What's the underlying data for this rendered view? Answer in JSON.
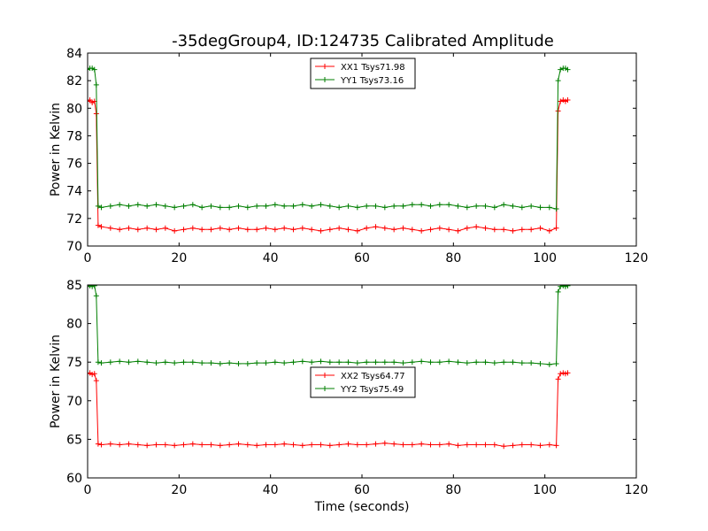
{
  "chart_data": [
    {
      "type": "line",
      "title": "-35degGroup4, ID:124735 Calibrated Amplitude",
      "xlabel": "",
      "ylabel": "Power in Kelvin",
      "xlim": [
        0,
        120
      ],
      "ylim": [
        70,
        84
      ],
      "xticks": [
        "0",
        "20",
        "40",
        "60",
        "80",
        "100",
        "120"
      ],
      "yticks": [
        "70",
        "72",
        "74",
        "76",
        "78",
        "80",
        "82",
        "84"
      ],
      "legend": "upper-center",
      "grid": false,
      "series": [
        {
          "name": "XX1 Tsys71.98",
          "color": "#ff0000",
          "marker": "plus",
          "x": [
            0.0,
            0.5,
            1.0,
            1.5,
            1.9,
            2.3,
            3,
            5,
            7,
            9,
            11,
            13,
            15,
            17,
            19,
            21,
            23,
            25,
            27,
            29,
            31,
            33,
            35,
            37,
            39,
            41,
            43,
            45,
            47,
            49,
            51,
            53,
            55,
            57,
            59,
            61,
            63,
            65,
            67,
            69,
            71,
            73,
            75,
            77,
            79,
            81,
            83,
            85,
            87,
            89,
            91,
            93,
            95,
            97,
            99,
            101,
            102.5,
            102.9,
            103.4,
            104,
            104.5,
            105
          ],
          "y": [
            80.5,
            80.6,
            80.4,
            80.5,
            79.6,
            71.5,
            71.4,
            71.3,
            71.2,
            71.3,
            71.2,
            71.3,
            71.2,
            71.3,
            71.1,
            71.2,
            71.3,
            71.2,
            71.2,
            71.3,
            71.2,
            71.3,
            71.2,
            71.2,
            71.3,
            71.2,
            71.3,
            71.2,
            71.3,
            71.2,
            71.1,
            71.2,
            71.3,
            71.2,
            71.1,
            71.3,
            71.4,
            71.3,
            71.2,
            71.3,
            71.2,
            71.1,
            71.2,
            71.3,
            71.2,
            71.1,
            71.3,
            71.4,
            71.3,
            71.2,
            71.2,
            71.1,
            71.2,
            71.2,
            71.3,
            71.1,
            71.3,
            79.8,
            80.5,
            80.6,
            80.5,
            80.6
          ]
        },
        {
          "name": "YY1 Tsys73.16",
          "color": "#007f00",
          "marker": "plus",
          "x": [
            0.0,
            0.5,
            1.0,
            1.5,
            1.9,
            2.3,
            3,
            5,
            7,
            9,
            11,
            13,
            15,
            17,
            19,
            21,
            23,
            25,
            27,
            29,
            31,
            33,
            35,
            37,
            39,
            41,
            43,
            45,
            47,
            49,
            51,
            53,
            55,
            57,
            59,
            61,
            63,
            65,
            67,
            69,
            71,
            73,
            75,
            77,
            79,
            81,
            83,
            85,
            87,
            89,
            91,
            93,
            95,
            97,
            99,
            101,
            102.5,
            102.9,
            103.4,
            104,
            104.5,
            105
          ],
          "y": [
            82.8,
            82.9,
            82.9,
            82.8,
            81.7,
            72.9,
            72.8,
            72.9,
            73.0,
            72.9,
            73.0,
            72.9,
            73.0,
            72.9,
            72.8,
            72.9,
            73.0,
            72.8,
            72.9,
            72.8,
            72.8,
            72.9,
            72.8,
            72.9,
            72.9,
            73.0,
            72.9,
            72.9,
            73.0,
            72.9,
            73.0,
            72.9,
            72.8,
            72.9,
            72.8,
            72.9,
            72.9,
            72.8,
            72.9,
            72.9,
            73.0,
            73.0,
            72.9,
            73.0,
            73.0,
            72.9,
            72.8,
            72.9,
            72.9,
            72.8,
            73.0,
            72.9,
            72.8,
            72.9,
            72.8,
            72.8,
            72.7,
            82.0,
            82.8,
            82.9,
            82.9,
            82.8
          ]
        }
      ]
    },
    {
      "type": "line",
      "title": "",
      "xlabel": "Time (seconds)",
      "ylabel": "Power in Kelvin",
      "xlim": [
        0,
        120
      ],
      "ylim": [
        60,
        85
      ],
      "xticks": [
        "0",
        "20",
        "40",
        "60",
        "80",
        "100",
        "120"
      ],
      "yticks": [
        "60",
        "65",
        "70",
        "75",
        "80",
        "85"
      ],
      "legend": "center",
      "grid": false,
      "series": [
        {
          "name": "XX2 Tsys64.77",
          "color": "#ff0000",
          "marker": "plus",
          "x": [
            0.0,
            0.5,
            1.0,
            1.5,
            1.9,
            2.3,
            3,
            5,
            7,
            9,
            11,
            13,
            15,
            17,
            19,
            21,
            23,
            25,
            27,
            29,
            31,
            33,
            35,
            37,
            39,
            41,
            43,
            45,
            47,
            49,
            51,
            53,
            55,
            57,
            59,
            61,
            63,
            65,
            67,
            69,
            71,
            73,
            75,
            77,
            79,
            81,
            83,
            85,
            87,
            89,
            91,
            93,
            95,
            97,
            99,
            101,
            102.5,
            102.9,
            103.4,
            104,
            104.5,
            105
          ],
          "y": [
            73.5,
            73.6,
            73.4,
            73.5,
            72.6,
            64.4,
            64.3,
            64.4,
            64.3,
            64.4,
            64.3,
            64.2,
            64.3,
            64.3,
            64.2,
            64.3,
            64.4,
            64.3,
            64.3,
            64.2,
            64.3,
            64.4,
            64.3,
            64.2,
            64.3,
            64.3,
            64.4,
            64.3,
            64.2,
            64.3,
            64.3,
            64.2,
            64.3,
            64.4,
            64.3,
            64.3,
            64.4,
            64.5,
            64.4,
            64.3,
            64.3,
            64.4,
            64.3,
            64.3,
            64.4,
            64.2,
            64.3,
            64.3,
            64.3,
            64.3,
            64.1,
            64.2,
            64.3,
            64.3,
            64.2,
            64.3,
            64.2,
            72.8,
            73.5,
            73.6,
            73.5,
            73.6
          ]
        },
        {
          "name": "YY2 Tsys75.49",
          "color": "#007f00",
          "marker": "plus",
          "x": [
            0.0,
            0.5,
            1.0,
            1.5,
            1.9,
            2.3,
            3,
            5,
            7,
            9,
            11,
            13,
            15,
            17,
            19,
            21,
            23,
            25,
            27,
            29,
            31,
            33,
            35,
            37,
            39,
            41,
            43,
            45,
            47,
            49,
            51,
            53,
            55,
            57,
            59,
            61,
            63,
            65,
            67,
            69,
            71,
            73,
            75,
            77,
            79,
            81,
            83,
            85,
            87,
            89,
            91,
            93,
            95,
            97,
            99,
            101,
            102.5,
            102.9,
            103.4,
            104,
            104.5,
            105
          ],
          "y": [
            84.8,
            84.9,
            84.8,
            84.9,
            83.6,
            75.0,
            74.9,
            75.0,
            75.1,
            75.0,
            75.1,
            75.0,
            74.9,
            75.0,
            74.9,
            75.0,
            75.0,
            74.9,
            74.9,
            74.8,
            74.9,
            74.8,
            74.8,
            74.9,
            74.9,
            75.0,
            74.9,
            75.0,
            75.1,
            75.0,
            75.1,
            75.0,
            75.0,
            75.0,
            74.9,
            75.0,
            75.0,
            75.0,
            75.0,
            74.9,
            75.0,
            75.1,
            75.0,
            75.0,
            75.1,
            75.0,
            74.9,
            75.0,
            75.0,
            74.9,
            75.0,
            75.0,
            74.9,
            74.9,
            74.8,
            74.7,
            74.8,
            84.1,
            84.8,
            84.9,
            84.8,
            84.9
          ]
        }
      ]
    }
  ]
}
